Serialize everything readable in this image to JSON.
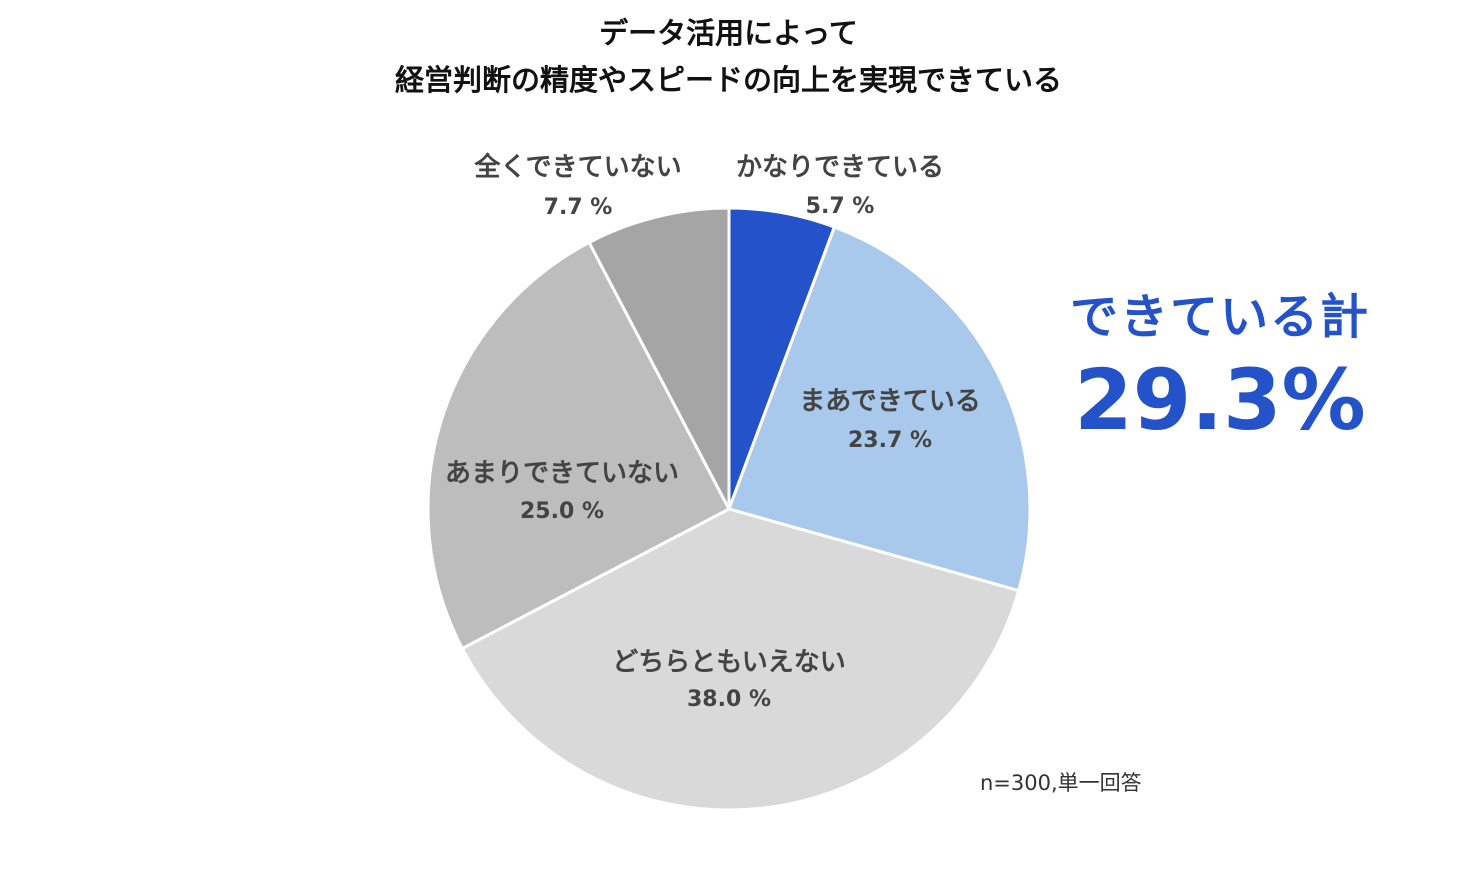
{
  "chart_data": {
    "type": "pie",
    "title_lines": [
      "データ活用によって",
      "経営判断の精度やスピードの向上を実現できている"
    ],
    "slices": [
      {
        "label": "かなりできている",
        "value": 5.7,
        "value_label": "5.7 %",
        "color": "#2452c8"
      },
      {
        "label": "まあできている",
        "value": 23.7,
        "value_label": "23.7 %",
        "color": "#a8c9ec"
      },
      {
        "label": "どちらともいえない",
        "value": 38.0,
        "value_label": "38.0 %",
        "color": "#d9d9d9"
      },
      {
        "label": "あまりできていない",
        "value": 25.0,
        "value_label": "25.0 %",
        "color": "#bdbdbd"
      },
      {
        "label": "全くできていない",
        "value": 7.7,
        "value_label": "7.7 %",
        "color": "#a5a5a5"
      }
    ],
    "start_angle_deg": 0,
    "direction": "clockwise",
    "legend": "none",
    "total_callout": {
      "label": "できている計",
      "value": "29.3%"
    },
    "footnote": "n=300,単一回答"
  }
}
